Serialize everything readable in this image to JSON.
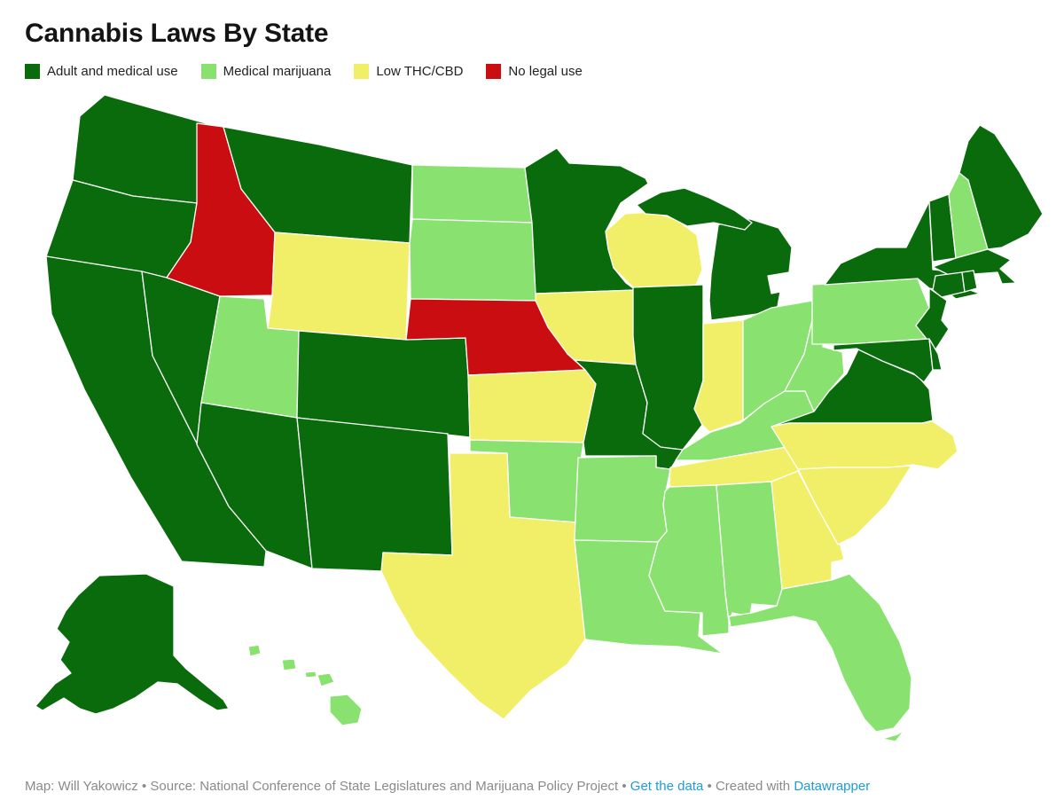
{
  "title": "Cannabis Laws By State",
  "colors": {
    "adult": "#0a6b0c",
    "medical": "#89e270",
    "low_thc": "#f1ee68",
    "none": "#c90d11",
    "state_border": "#ffffff",
    "footer_text": "#8a8a8a",
    "link": "#1d9cd8"
  },
  "legend": {
    "items": [
      {
        "key": "adult",
        "label": "Adult and medical use"
      },
      {
        "key": "medical",
        "label": "Medical marijuana"
      },
      {
        "key": "low_thc",
        "label": "Low THC/CBD"
      },
      {
        "key": "none",
        "label": "No legal use"
      }
    ]
  },
  "footer": {
    "segments": [
      {
        "type": "text",
        "text": "Map: Will Yakowicz • Source: National Conference of State Legislatures and Marijuana Policy Project • "
      },
      {
        "type": "link",
        "name": "get-data-link",
        "text": "Get the data"
      },
      {
        "type": "text",
        "text": " • "
      },
      {
        "type": "text",
        "text": "Created with "
      },
      {
        "type": "link",
        "name": "datawrapper-link",
        "text": "Datawrapper"
      }
    ]
  },
  "chart_data": {
    "type": "choropleth",
    "title": "Cannabis Laws By State",
    "categories": [
      "Adult and medical use",
      "Medical marijuana",
      "Low THC/CBD",
      "No legal use"
    ],
    "states": [
      {
        "abbr": "WA",
        "name": "Washington",
        "category": "adult"
      },
      {
        "abbr": "OR",
        "name": "Oregon",
        "category": "adult"
      },
      {
        "abbr": "CA",
        "name": "California",
        "category": "adult"
      },
      {
        "abbr": "NV",
        "name": "Nevada",
        "category": "adult"
      },
      {
        "abbr": "AZ",
        "name": "Arizona",
        "category": "adult"
      },
      {
        "abbr": "NM",
        "name": "New Mexico",
        "category": "adult"
      },
      {
        "abbr": "CO",
        "name": "Colorado",
        "category": "adult"
      },
      {
        "abbr": "MT",
        "name": "Montana",
        "category": "adult"
      },
      {
        "abbr": "AK",
        "name": "Alaska",
        "category": "adult"
      },
      {
        "abbr": "MN",
        "name": "Minnesota",
        "category": "adult"
      },
      {
        "abbr": "IL",
        "name": "Illinois",
        "category": "adult"
      },
      {
        "abbr": "MO",
        "name": "Missouri",
        "category": "adult"
      },
      {
        "abbr": "MI",
        "name": "Michigan",
        "category": "adult"
      },
      {
        "abbr": "VA",
        "name": "Virginia",
        "category": "adult"
      },
      {
        "abbr": "MD",
        "name": "Maryland",
        "category": "adult"
      },
      {
        "abbr": "DE",
        "name": "Delaware",
        "category": "adult"
      },
      {
        "abbr": "NJ",
        "name": "New Jersey",
        "category": "adult"
      },
      {
        "abbr": "NY",
        "name": "New York",
        "category": "adult"
      },
      {
        "abbr": "CT",
        "name": "Connecticut",
        "category": "adult"
      },
      {
        "abbr": "RI",
        "name": "Rhode Island",
        "category": "adult"
      },
      {
        "abbr": "MA",
        "name": "Massachusetts",
        "category": "adult"
      },
      {
        "abbr": "VT",
        "name": "Vermont",
        "category": "adult"
      },
      {
        "abbr": "ME",
        "name": "Maine",
        "category": "adult"
      },
      {
        "abbr": "ND",
        "name": "North Dakota",
        "category": "medical"
      },
      {
        "abbr": "SD",
        "name": "South Dakota",
        "category": "medical"
      },
      {
        "abbr": "UT",
        "name": "Utah",
        "category": "medical"
      },
      {
        "abbr": "OK",
        "name": "Oklahoma",
        "category": "medical"
      },
      {
        "abbr": "AR",
        "name": "Arkansas",
        "category": "medical"
      },
      {
        "abbr": "LA",
        "name": "Louisiana",
        "category": "medical"
      },
      {
        "abbr": "MS",
        "name": "Mississippi",
        "category": "medical"
      },
      {
        "abbr": "AL",
        "name": "Alabama",
        "category": "medical"
      },
      {
        "abbr": "FL",
        "name": "Florida",
        "category": "medical"
      },
      {
        "abbr": "OH",
        "name": "Ohio",
        "category": "medical"
      },
      {
        "abbr": "WV",
        "name": "West Virginia",
        "category": "medical"
      },
      {
        "abbr": "PA",
        "name": "Pennsylvania",
        "category": "medical"
      },
      {
        "abbr": "KY",
        "name": "Kentucky",
        "category": "medical"
      },
      {
        "abbr": "NH",
        "name": "New Hampshire",
        "category": "medical"
      },
      {
        "abbr": "HI",
        "name": "Hawaii",
        "category": "medical"
      },
      {
        "abbr": "WY",
        "name": "Wyoming",
        "category": "low_thc"
      },
      {
        "abbr": "KS",
        "name": "Kansas",
        "category": "low_thc"
      },
      {
        "abbr": "IA",
        "name": "Iowa",
        "category": "low_thc"
      },
      {
        "abbr": "WI",
        "name": "Wisconsin",
        "category": "low_thc"
      },
      {
        "abbr": "IN",
        "name": "Indiana",
        "category": "low_thc"
      },
      {
        "abbr": "TX",
        "name": "Texas",
        "category": "low_thc"
      },
      {
        "abbr": "TN",
        "name": "Tennessee",
        "category": "low_thc"
      },
      {
        "abbr": "NC",
        "name": "North Carolina",
        "category": "low_thc"
      },
      {
        "abbr": "SC",
        "name": "South Carolina",
        "category": "low_thc"
      },
      {
        "abbr": "GA",
        "name": "Georgia",
        "category": "low_thc"
      },
      {
        "abbr": "ID",
        "name": "Idaho",
        "category": "none"
      },
      {
        "abbr": "NE",
        "name": "Nebraska",
        "category": "none"
      }
    ]
  }
}
